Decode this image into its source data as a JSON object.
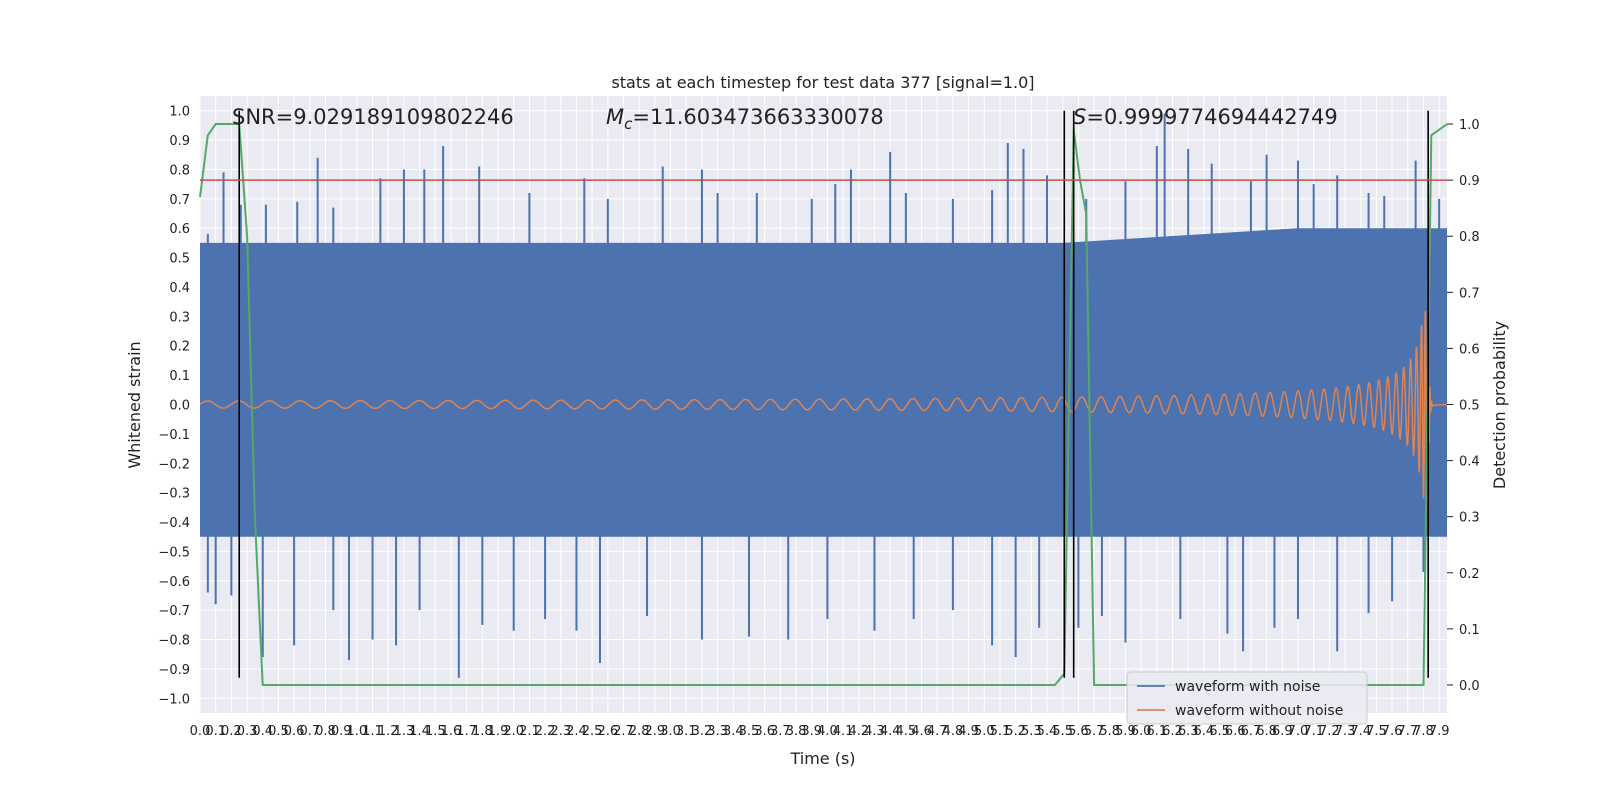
{
  "chart_data": {
    "type": "line",
    "title": "stats at each timestep for test data 377 [signal=1.0]",
    "xlabel": "Time (s)",
    "ylabel_left": "Whitened strain",
    "ylabel_right": "Detection probability",
    "xlim": [
      0.0,
      7.95
    ],
    "ylim_left": [
      -1.05,
      1.05
    ],
    "ylim_right": [
      -0.05,
      1.05
    ],
    "x_ticks": [
      "0.0",
      "0.1",
      "0.2",
      "0.3",
      "0.4",
      "0.5",
      "0.6",
      "0.7",
      "0.8",
      "0.9",
      "1.0",
      "1.1",
      "1.2",
      "1.3",
      "1.4",
      "1.5",
      "1.6",
      "1.7",
      "1.8",
      "1.9",
      "2.0",
      "2.1",
      "2.2",
      "2.3",
      "2.4",
      "2.5",
      "2.6",
      "2.7",
      "2.8",
      "2.9",
      "3.0",
      "3.1",
      "3.2",
      "3.3",
      "3.4",
      "3.5",
      "3.6",
      "3.7",
      "3.8",
      "3.9",
      "4.0",
      "4.1",
      "4.2",
      "4.3",
      "4.4",
      "4.5",
      "4.6",
      "4.7",
      "4.8",
      "4.9",
      "5.0",
      "5.1",
      "5.2",
      "5.3",
      "5.4",
      "5.5",
      "5.6",
      "5.7",
      "5.8",
      "5.9",
      "6.0",
      "6.1",
      "6.2",
      "6.3",
      "6.4",
      "6.5",
      "6.6",
      "6.7",
      "6.8",
      "6.9",
      "7.0",
      "7.1",
      "7.2",
      "7.3",
      "7.4",
      "7.5",
      "7.6",
      "7.7",
      "7.8",
      "7.9"
    ],
    "y_ticks_left": [
      "−1.0",
      "−0.9",
      "−0.8",
      "−0.7",
      "−0.6",
      "−0.5",
      "−0.4",
      "−0.3",
      "−0.2",
      "−0.1",
      "0.0",
      "0.1",
      "0.2",
      "0.3",
      "0.4",
      "0.5",
      "0.6",
      "0.7",
      "0.8",
      "0.9",
      "1.0"
    ],
    "y_ticks_right": [
      "0.0",
      "0.1",
      "0.2",
      "0.3",
      "0.4",
      "0.5",
      "0.6",
      "0.7",
      "0.8",
      "0.9",
      "1.0"
    ],
    "annotations": {
      "snr": "SNR=9.029189109802246",
      "mc_symbol": "M",
      "mc_sub": "c",
      "mc_value": "=11.603473663330078",
      "s_symbol": "S",
      "s_value": "=0.9999774694442749"
    },
    "series": [
      {
        "name": "waveform with noise",
        "color": "#4c72b0",
        "axis": "left",
        "envelope": {
          "x": [
            0.0,
            2.0,
            4.0,
            5.5,
            7.0,
            7.95
          ],
          "upper": [
            0.55,
            0.55,
            0.55,
            0.55,
            0.6,
            0.6
          ],
          "lower": [
            -0.45,
            -0.45,
            -0.45,
            -0.45,
            -0.45,
            -0.45
          ]
        },
        "spikes_up": [
          [
            0.05,
            0.58
          ],
          [
            0.15,
            0.79
          ],
          [
            0.26,
            0.68
          ],
          [
            0.42,
            0.68
          ],
          [
            0.62,
            0.69
          ],
          [
            0.75,
            0.84
          ],
          [
            0.85,
            0.67
          ],
          [
            1.15,
            0.77
          ],
          [
            1.3,
            0.8
          ],
          [
            1.43,
            0.8
          ],
          [
            1.55,
            0.88
          ],
          [
            1.78,
            0.81
          ],
          [
            2.1,
            0.72
          ],
          [
            2.45,
            0.77
          ],
          [
            2.6,
            0.7
          ],
          [
            2.95,
            0.81
          ],
          [
            3.2,
            0.8
          ],
          [
            3.3,
            0.72
          ],
          [
            3.55,
            0.72
          ],
          [
            3.9,
            0.7
          ],
          [
            4.05,
            0.75
          ],
          [
            4.15,
            0.8
          ],
          [
            4.4,
            0.86
          ],
          [
            4.5,
            0.72
          ],
          [
            4.8,
            0.7
          ],
          [
            5.05,
            0.73
          ],
          [
            5.15,
            0.89
          ],
          [
            5.25,
            0.87
          ],
          [
            5.4,
            0.78
          ],
          [
            5.65,
            0.7
          ],
          [
            5.9,
            0.76
          ],
          [
            6.1,
            0.88
          ],
          [
            6.15,
            0.99
          ],
          [
            6.3,
            0.87
          ],
          [
            6.45,
            0.82
          ],
          [
            6.7,
            0.76
          ],
          [
            6.8,
            0.85
          ],
          [
            7.0,
            0.83
          ],
          [
            7.1,
            0.75
          ],
          [
            7.25,
            0.78
          ],
          [
            7.45,
            0.72
          ],
          [
            7.55,
            0.71
          ],
          [
            7.75,
            0.83
          ],
          [
            7.9,
            0.7
          ]
        ],
        "spikes_down": [
          [
            0.05,
            -0.64
          ],
          [
            0.1,
            -0.68
          ],
          [
            0.2,
            -0.65
          ],
          [
            0.4,
            -0.86
          ],
          [
            0.6,
            -0.82
          ],
          [
            0.85,
            -0.7
          ],
          [
            0.95,
            -0.87
          ],
          [
            1.1,
            -0.8
          ],
          [
            1.25,
            -0.82
          ],
          [
            1.4,
            -0.7
          ],
          [
            1.65,
            -0.93
          ],
          [
            1.8,
            -0.75
          ],
          [
            2.0,
            -0.77
          ],
          [
            2.2,
            -0.73
          ],
          [
            2.4,
            -0.77
          ],
          [
            2.55,
            -0.88
          ],
          [
            2.85,
            -0.72
          ],
          [
            3.2,
            -0.8
          ],
          [
            3.5,
            -0.79
          ],
          [
            3.75,
            -0.8
          ],
          [
            4.0,
            -0.73
          ],
          [
            4.3,
            -0.77
          ],
          [
            4.55,
            -0.73
          ],
          [
            4.8,
            -0.7
          ],
          [
            5.05,
            -0.82
          ],
          [
            5.2,
            -0.86
          ],
          [
            5.35,
            -0.76
          ],
          [
            5.6,
            -0.76
          ],
          [
            5.75,
            -0.72
          ],
          [
            5.9,
            -0.81
          ],
          [
            6.25,
            -0.73
          ],
          [
            6.55,
            -0.78
          ],
          [
            6.65,
            -0.84
          ],
          [
            6.85,
            -0.76
          ],
          [
            7.0,
            -0.73
          ],
          [
            7.25,
            -0.84
          ],
          [
            7.45,
            -0.71
          ],
          [
            7.6,
            -0.67
          ],
          [
            7.8,
            -0.57
          ]
        ]
      },
      {
        "name": "waveform without noise",
        "color": "#dd8452",
        "axis": "left",
        "chirp": {
          "t_merger": 7.83,
          "amp_start": 0.012,
          "amp_peak": 0.32,
          "ringdown_end": 7.86
        }
      },
      {
        "name": "",
        "color": "#55a868",
        "axis": "right",
        "x": [
          0.0,
          0.05,
          0.1,
          0.15,
          0.2,
          0.25,
          0.3,
          0.35,
          0.4,
          0.45,
          0.5,
          0.7,
          1.0,
          2.0,
          3.0,
          4.0,
          5.0,
          5.45,
          5.51,
          5.57,
          5.61,
          5.65,
          5.7,
          5.75,
          6.0,
          7.0,
          7.75,
          7.8,
          7.85,
          7.9,
          7.95
        ],
        "y": [
          0.87,
          0.98,
          1.0,
          1.0,
          1.0,
          1.0,
          0.8,
          0.3,
          0.0,
          0.0,
          0.0,
          0.0,
          0.0,
          0.0,
          0.0,
          0.0,
          0.0,
          0.0,
          0.02,
          0.99,
          0.9,
          0.84,
          0.0,
          0.0,
          0.0,
          0.0,
          0.0,
          0.0,
          0.98,
          0.99,
          1.0
        ]
      }
    ],
    "vertical_lines": [
      {
        "x": 0.25,
        "ymin": -0.93,
        "ymax": 1.0,
        "color": "#000000"
      },
      {
        "x": 5.51,
        "ymin": -0.93,
        "ymax": 1.0,
        "color": "#000000"
      },
      {
        "x": 5.57,
        "ymin": -0.93,
        "ymax": 1.0,
        "color": "#000000"
      },
      {
        "x": 7.83,
        "ymin": -0.93,
        "ymax": 1.0,
        "color": "#000000"
      }
    ],
    "threshold_line": {
      "axis": "right",
      "y": 0.9,
      "color": "#c44e52"
    },
    "legend": {
      "placement": "lower right"
    },
    "grid": true,
    "background": "#eaeaf2"
  }
}
